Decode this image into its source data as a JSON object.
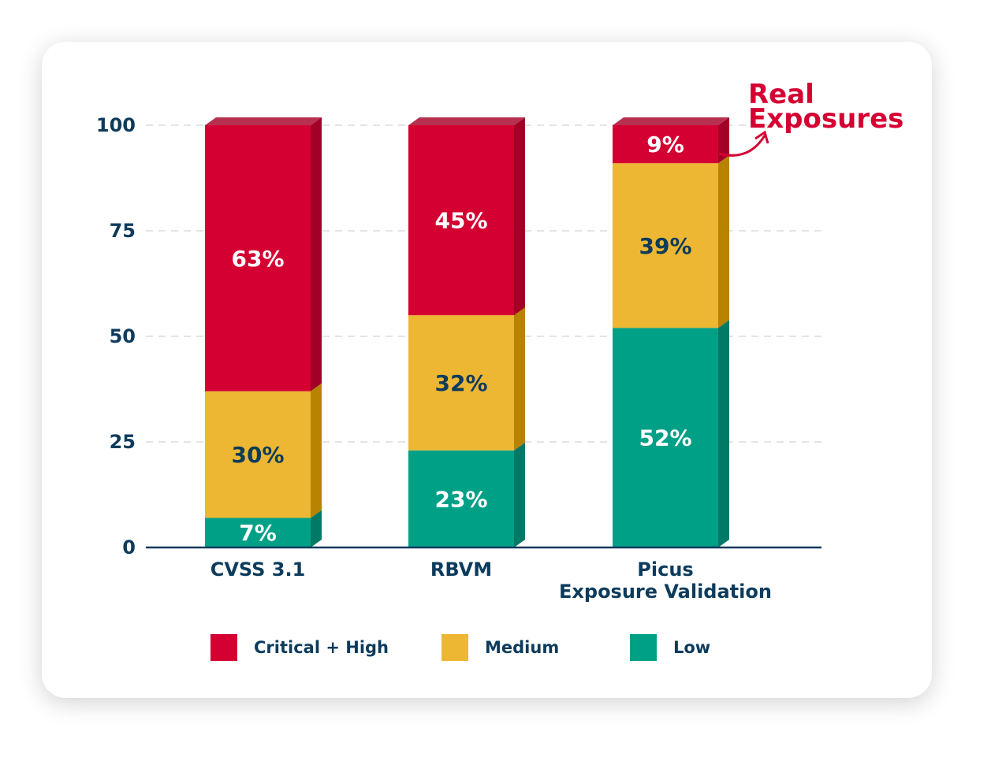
{
  "chart_data": {
    "type": "bar",
    "stacked": true,
    "categories": [
      [
        "CVSS 3.1"
      ],
      [
        "RBVM"
      ],
      [
        "Picus",
        "Exposure Validation"
      ]
    ],
    "series": [
      {
        "name": "Low",
        "values": [
          7,
          23,
          52
        ],
        "labels": [
          "7%",
          "23%",
          "52%"
        ],
        "color": "#00a087",
        "side_color": "#007a66",
        "label_color": "#ffffff"
      },
      {
        "name": "Medium",
        "values": [
          30,
          32,
          39
        ],
        "labels": [
          "30%",
          "32%",
          "39%"
        ],
        "color": "#edb733",
        "side_color": "#b78300",
        "label_color": "#0d3b5c"
      },
      {
        "name": "Critical + High",
        "values": [
          63,
          45,
          9
        ],
        "labels": [
          "63%",
          "45%",
          "9%"
        ],
        "color": "#d50032",
        "side_color": "#a30027",
        "label_color": "#ffffff"
      }
    ],
    "ylim": [
      0,
      100
    ],
    "yticks": [
      0,
      25,
      50,
      75,
      100
    ],
    "grid": true,
    "legend": {
      "position": "bottom",
      "order": [
        "Critical + High",
        "Medium",
        "Low"
      ]
    },
    "annotation": {
      "lines": [
        "Real",
        "Exposures"
      ],
      "color": "#d50032",
      "target": "Picus Exposure Validation — Critical + High"
    },
    "title": "",
    "xlabel": "",
    "ylabel": ""
  }
}
